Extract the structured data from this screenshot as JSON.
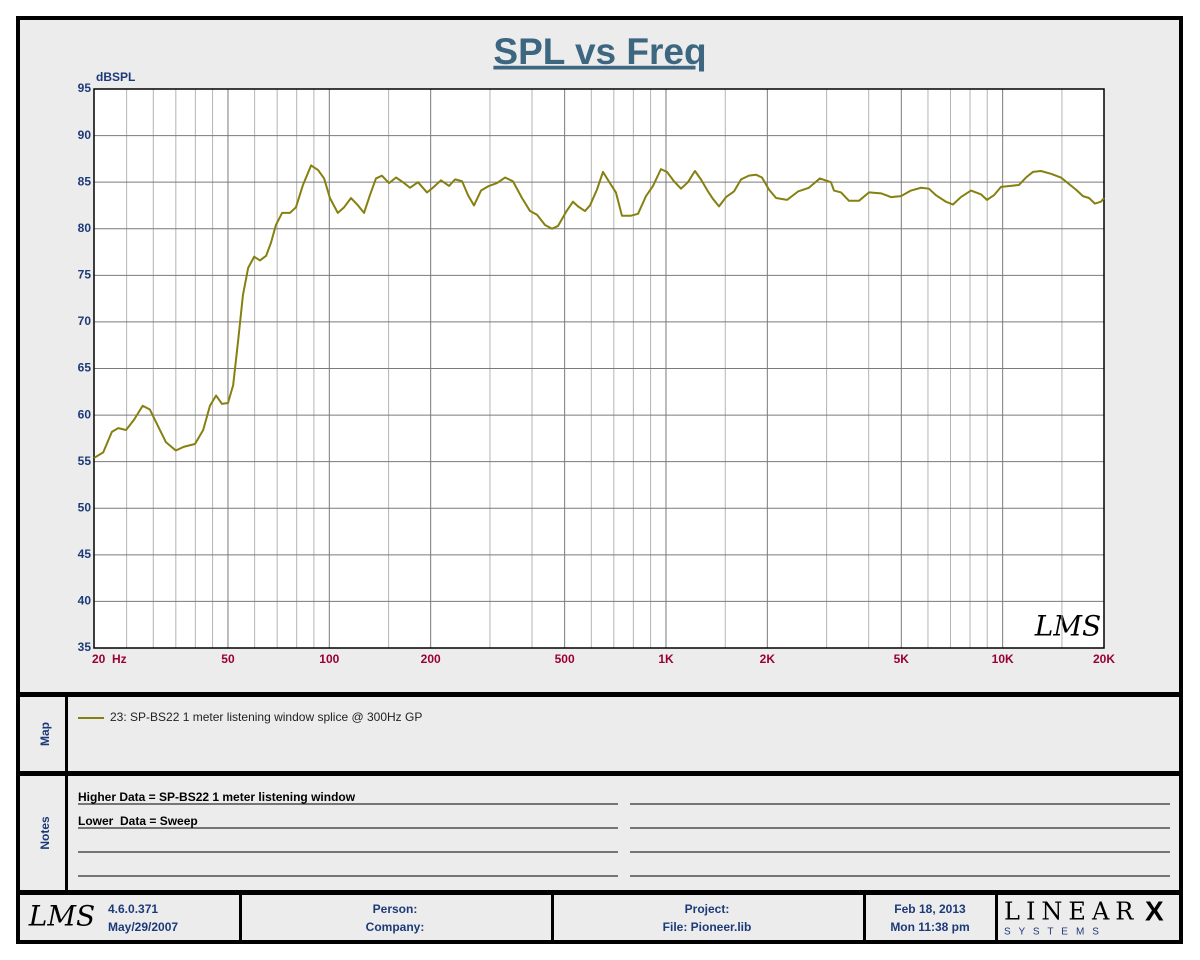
{
  "chart_data": {
    "type": "line",
    "title": "SPL vs Freq",
    "y_label": "dBSPL",
    "watermark": "LMS",
    "log_x": true,
    "grid": true,
    "xlim": [
      20,
      20000
    ],
    "ylim": [
      35,
      95
    ],
    "yticks": [
      35,
      40,
      45,
      50,
      55,
      60,
      65,
      70,
      75,
      80,
      85,
      90,
      95
    ],
    "xticks": [
      {
        "value": 20,
        "label": "20  Hz"
      },
      50,
      100,
      200,
      500,
      {
        "value": 1000,
        "label": "1K"
      },
      {
        "value": 2000,
        "label": "2K"
      },
      {
        "value": 5000,
        "label": "5K"
      },
      {
        "value": 10000,
        "label": "10K"
      },
      {
        "value": 20000,
        "label": "20K"
      }
    ],
    "xminor": [
      25,
      30,
      35,
      40,
      45,
      60,
      70,
      80,
      90,
      150,
      300,
      400,
      600,
      700,
      800,
      900,
      1500,
      3000,
      4000,
      6000,
      7000,
      8000,
      9000,
      15000
    ],
    "x": [
      20,
      21.3,
      22.6,
      23.6,
      24.9,
      26.3,
      27.9,
      29.3,
      31,
      32.7,
      35,
      37,
      39.9,
      42.2,
      44.2,
      46.1,
      48,
      50,
      51.8,
      53.6,
      55.4,
      57.4,
      59.8,
      62.2,
      64.9,
      67.1,
      69.4,
      72.4,
      76.4,
      79.6,
      83.5,
      88.3,
      92.6,
      96.5,
      100.4,
      106,
      110.6,
      116,
      121.7,
      126.8,
      132,
      137.6,
      143.3,
      150.4,
      157.8,
      165.5,
      173.6,
      183.4,
      195,
      203,
      214.6,
      226.8,
      236.3,
      247.9,
      258.3,
      269,
      282.2,
      298,
      314.8,
      332.6,
      351,
      373.5,
      394.6,
      413.9,
      437.2,
      458.7,
      477.8,
      504.7,
      529.4,
      547.8,
      574.6,
      594.6,
      623.7,
      650,
      681.6,
      710,
      740,
      787,
      826,
      872,
      915,
      966,
      1007,
      1056,
      1108,
      1162,
      1219,
      1270,
      1333,
      1379,
      1437,
      1508,
      1592,
      1671,
      1764,
      1851,
      1928,
      2023,
      2123,
      2290,
      2467,
      2657,
      2865,
      3090,
      3155,
      3311,
      3496,
      3743,
      4009,
      4352,
      4659,
      4989,
      5342,
      5720,
      6040,
      6337,
      6785,
      7118,
      7518,
      8051,
      8618,
      8982,
      9424,
      9886,
      10580,
      11180,
      11730,
      12300,
      12990,
      13920,
      14900,
      15740,
      16510,
      17320,
      18050,
      18800,
      19590,
      20000
    ],
    "series": [
      {
        "name": "23: SP-BS22 1 meter listening window splice @ 300Hz GP",
        "color": "#85800f",
        "values": [
          55.4,
          56,
          58.2,
          58.6,
          58.4,
          59.5,
          61,
          60.6,
          58.8,
          57.1,
          56.2,
          56.6,
          56.9,
          58.4,
          61,
          62.1,
          61.2,
          61.3,
          63.2,
          68,
          72.9,
          75.8,
          77,
          76.6,
          77.1,
          78.5,
          80.4,
          81.7,
          81.7,
          82.3,
          84.7,
          86.8,
          86.3,
          85.4,
          83.3,
          81.7,
          82.3,
          83.3,
          82.5,
          81.7,
          83.6,
          85.4,
          85.7,
          84.9,
          85.5,
          85,
          84.4,
          85,
          83.9,
          84.4,
          85.2,
          84.6,
          85.3,
          85.1,
          83.6,
          82.5,
          84.1,
          84.6,
          84.9,
          85.5,
          85.1,
          83.3,
          81.9,
          81.5,
          80.4,
          80,
          80.3,
          81.8,
          82.9,
          82.4,
          81.9,
          82.5,
          84.2,
          86.1,
          84.9,
          83.9,
          81.4,
          81.4,
          81.6,
          83.5,
          84.6,
          86.4,
          86.1,
          85.1,
          84.3,
          85,
          86.2,
          85.3,
          84,
          83.2,
          82.4,
          83.4,
          84,
          85.3,
          85.7,
          85.8,
          85.5,
          84.2,
          83.3,
          83.1,
          84,
          84.4,
          85.4,
          85,
          84.1,
          83.9,
          83,
          83,
          83.9,
          83.8,
          83.4,
          83.5,
          84.1,
          84.4,
          84.3,
          83.6,
          82.9,
          82.6,
          83.4,
          84.1,
          83.7,
          83.1,
          83.6,
          84.5,
          84.6,
          84.7,
          85.5,
          86.1,
          86.2,
          85.9,
          85.5,
          84.8,
          84.2,
          83.5,
          83.3,
          82.7,
          82.9,
          83.3
        ]
      }
    ]
  },
  "map": {
    "label": "Map"
  },
  "notes": {
    "label": "Notes",
    "lines": [
      "Higher Data = SP-BS22 1 meter listening window",
      "Lower  Data = Sweep"
    ]
  },
  "footer": {
    "logo": "LMS",
    "version": "4.6.0.371",
    "version_date": "May/29/2007",
    "person": "Person:",
    "company": "Company:",
    "project": "Project:",
    "file": "File: Pioneer.lib",
    "date": "Feb 18, 2013",
    "time": "Mon 11:38 pm",
    "brand": "LINEAR",
    "brand_mark": "X",
    "brand_sub": "S Y S T E M S"
  }
}
